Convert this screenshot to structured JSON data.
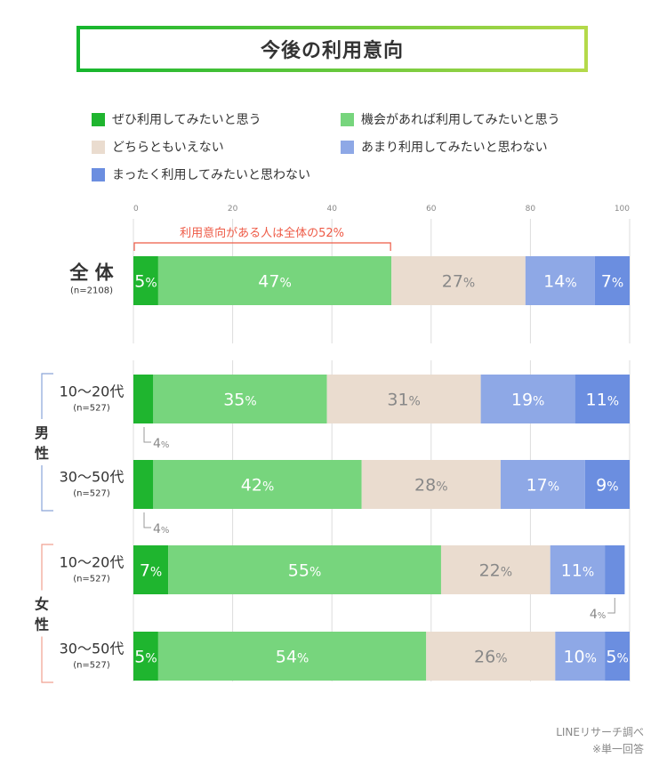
{
  "title": "今後の利用意向",
  "legend": [
    {
      "label": "ぜひ利用してみたいと思う",
      "color": "#1fb52f"
    },
    {
      "label": "機会があれば利用してみたいと思う",
      "color": "#77d57d"
    },
    {
      "label": "どちらともいえない",
      "color": "#eadccf"
    },
    {
      "label": "あまり利用してみたいと思わない",
      "color": "#8ea8e6"
    },
    {
      "label": "まったく利用してみたいと思わない",
      "color": "#6b8ee0"
    }
  ],
  "annotation": "利用意向がある人は全体の52%",
  "groups": {
    "male": {
      "label_lines": [
        "男",
        "性"
      ],
      "color": "#8aa5d8"
    },
    "female": {
      "label_lines": [
        "女",
        "性"
      ],
      "color": "#f0a090"
    }
  },
  "chart_data": {
    "type": "bar",
    "orientation": "horizontal-stacked",
    "xlim": [
      0,
      100
    ],
    "ticks": [
      "0",
      "20",
      "40",
      "60",
      "80",
      "100"
    ],
    "percent_suffix": "%",
    "rows": [
      {
        "label": "全 体",
        "n": "(n=2108)",
        "group": null,
        "values": [
          5,
          47,
          27,
          14,
          7
        ],
        "shown": [
          "5",
          "47",
          "27",
          "14",
          "7"
        ],
        "outside": null
      },
      {
        "label": "10〜20代",
        "n": "(n=527)",
        "group": "male",
        "values": [
          4,
          35,
          31,
          19,
          11
        ],
        "shown": [
          "",
          "35",
          "31",
          "19",
          "11"
        ],
        "outside": {
          "index": 0,
          "text": "4"
        }
      },
      {
        "label": "30〜50代",
        "n": "(n=527)",
        "group": "male",
        "values": [
          4,
          42,
          28,
          17,
          9
        ],
        "shown": [
          "",
          "42",
          "28",
          "17",
          "9"
        ],
        "outside": {
          "index": 0,
          "text": "4"
        }
      },
      {
        "label": "10〜20代",
        "n": "(n=527)",
        "group": "female",
        "values": [
          7,
          55,
          22,
          11,
          4
        ],
        "shown": [
          "7",
          "55",
          "22",
          "11",
          ""
        ],
        "outside": {
          "index": 4,
          "text": "4"
        }
      },
      {
        "label": "30〜50代",
        "n": "(n=527)",
        "group": "female",
        "values": [
          5,
          54,
          26,
          10,
          5
        ],
        "shown": [
          "5",
          "54",
          "26",
          "10",
          "5"
        ],
        "outside": null
      }
    ]
  },
  "footer": {
    "source": "LINEリサーチ調べ",
    "note": "※単一回答"
  }
}
